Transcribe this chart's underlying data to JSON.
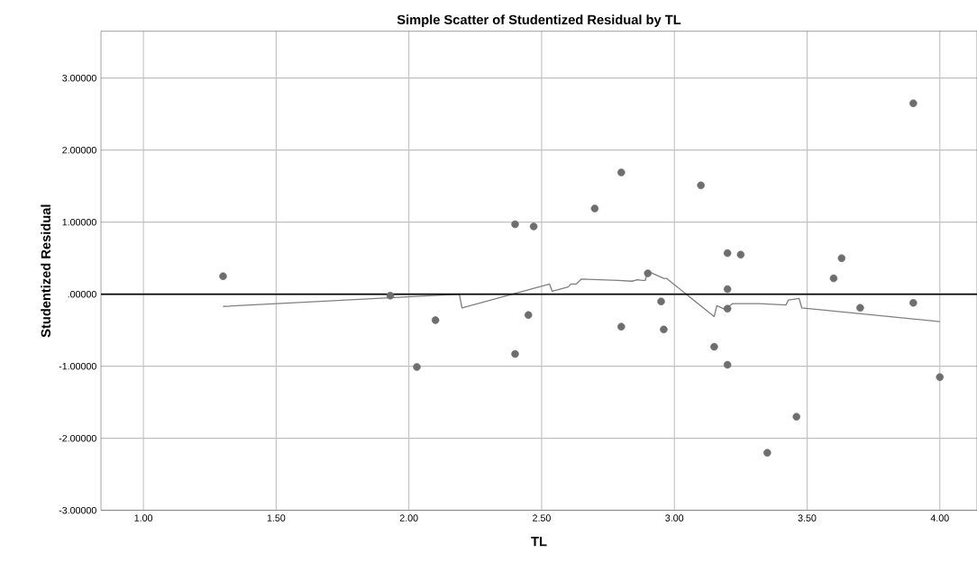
{
  "chart_data": {
    "type": "scatter",
    "title": "Simple Scatter of Studentized Residual by TL",
    "xlabel": "TL",
    "ylabel": "Studentized Residual",
    "xlim": [
      0.84,
      4.14
    ],
    "ylim": [
      -3.0,
      3.65
    ],
    "xticks": [
      {
        "value": 1,
        "label": "1.00"
      },
      {
        "value": 1.5,
        "label": "1.50"
      },
      {
        "value": 2,
        "label": "2.00"
      },
      {
        "value": 2.5,
        "label": "2.50"
      },
      {
        "value": 3,
        "label": "3.00"
      },
      {
        "value": 3.5,
        "label": "3.50"
      },
      {
        "value": 4,
        "label": "4.00"
      }
    ],
    "yticks": [
      {
        "value": -3,
        "label": "-3.00000"
      },
      {
        "value": -2,
        "label": "-2.00000"
      },
      {
        "value": -1,
        "label": "-1.00000"
      },
      {
        "value": 0,
        "label": ".00000"
      },
      {
        "value": 1,
        "label": "1.00000"
      },
      {
        "value": 2,
        "label": "2.00000"
      },
      {
        "value": 3,
        "label": "3.00000"
      }
    ],
    "grid": true,
    "series": [
      {
        "type": "scatter",
        "color": "#6e6e6e",
        "x": [
          1.3,
          1.93,
          2.03,
          2.1,
          2.4,
          2.4,
          2.47,
          2.45,
          2.7,
          2.8,
          2.8,
          2.9,
          2.95,
          2.96,
          3.1,
          3.15,
          3.2,
          3.25,
          3.2,
          3.2,
          3.2,
          3.6,
          3.63,
          3.7,
          3.46,
          3.35,
          3.9,
          3.9,
          4.0
        ],
        "values": [
          0.25,
          -0.02,
          -1.01,
          -0.36,
          0.97,
          -0.83,
          0.94,
          -0.29,
          1.19,
          1.69,
          -0.45,
          0.29,
          -0.1,
          -0.49,
          1.51,
          -0.73,
          0.57,
          0.55,
          0.07,
          -0.2,
          -0.98,
          0.22,
          0.5,
          -0.19,
          -1.7,
          -2.2,
          -0.12,
          2.65,
          -1.15
        ]
      },
      {
        "type": "line",
        "color": "#7f7f7f",
        "x": [
          1.3,
          2.19,
          2.2,
          2.53,
          2.54,
          2.6,
          2.61,
          2.63,
          2.65,
          2.79,
          2.84,
          2.86,
          2.88,
          2.89,
          2.9,
          2.96,
          2.97,
          3.15,
          3.16,
          3.19,
          3.22,
          3.32,
          3.42,
          3.43,
          3.47,
          3.48,
          4.0
        ],
        "values": [
          -0.17,
          0.0,
          -0.19,
          0.14,
          0.04,
          0.1,
          0.14,
          0.14,
          0.21,
          0.19,
          0.18,
          0.2,
          0.19,
          0.19,
          0.32,
          0.22,
          0.22,
          -0.31,
          -0.16,
          -0.21,
          -0.13,
          -0.13,
          -0.15,
          -0.08,
          -0.06,
          -0.19,
          -0.38
        ]
      }
    ],
    "ref_lines": [
      {
        "axis": "y",
        "value": 0,
        "color": "#000000"
      }
    ]
  }
}
